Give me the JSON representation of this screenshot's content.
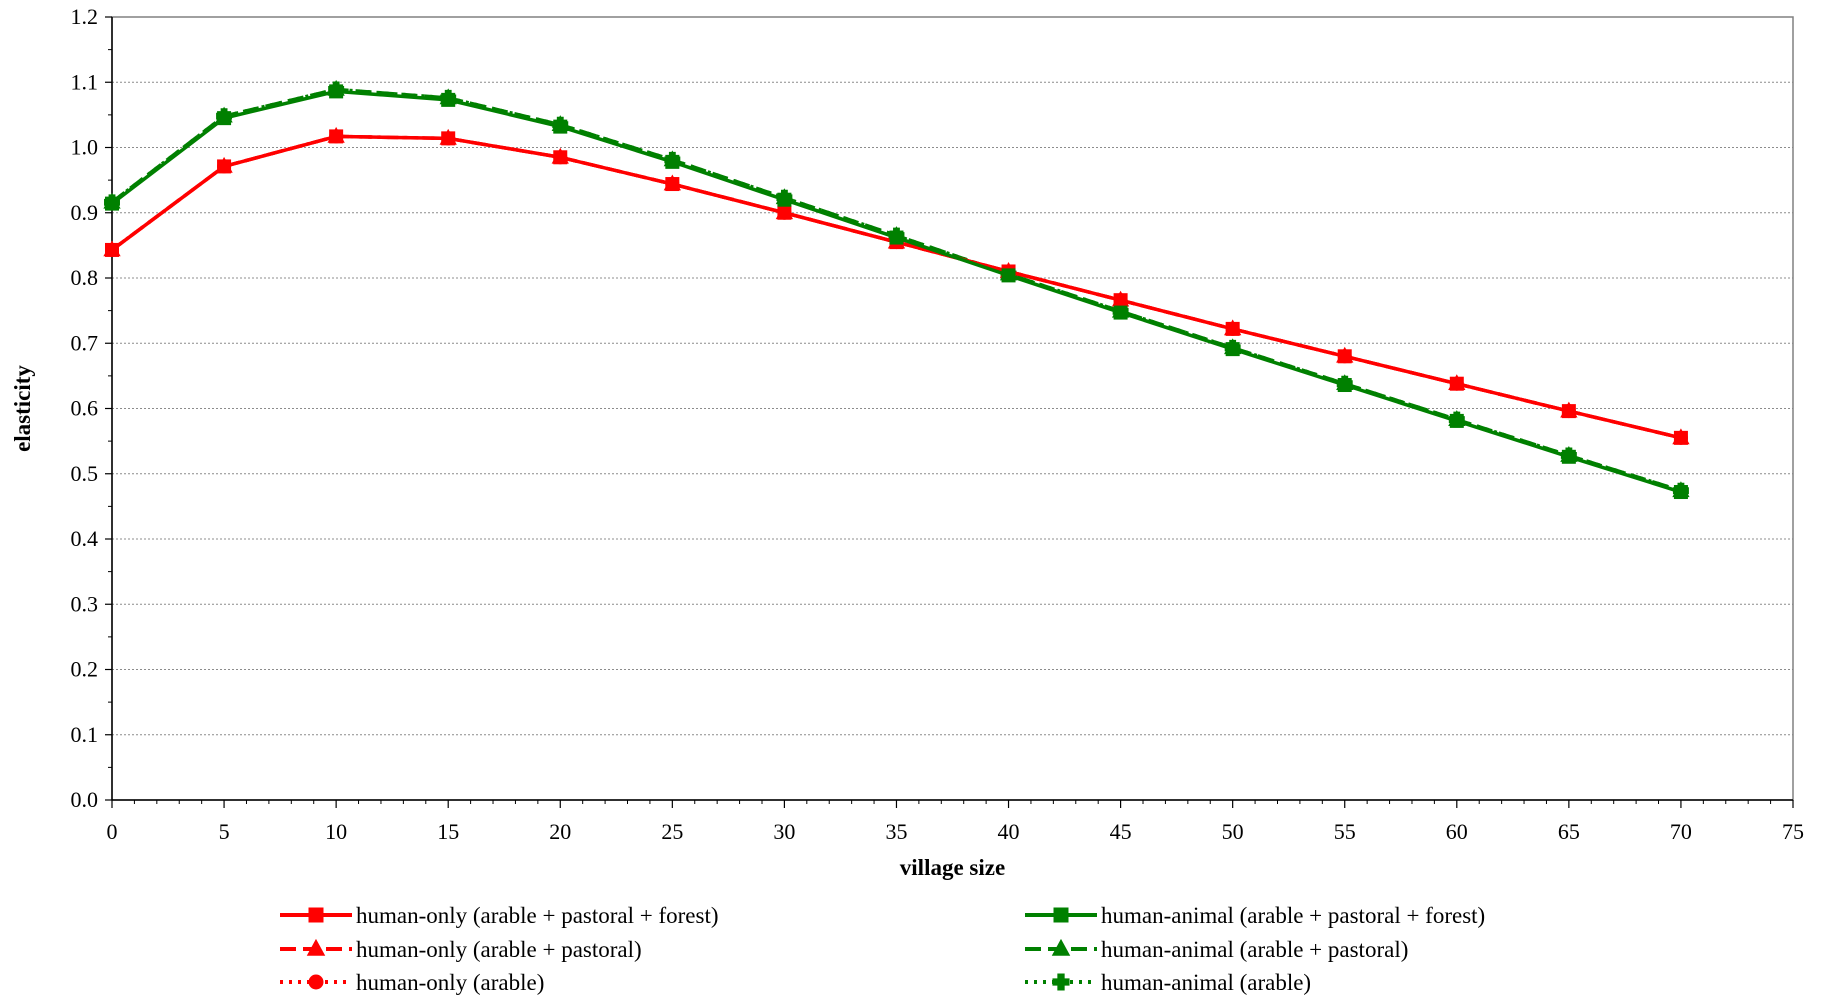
{
  "chart_data": {
    "type": "line",
    "xlabel": "village size",
    "ylabel": "elasticity",
    "xlim": [
      0,
      75
    ],
    "ylim": [
      0,
      1.2
    ],
    "x_ticks": [
      "0",
      "5",
      "10",
      "15",
      "20",
      "25",
      "30",
      "35",
      "40",
      "45",
      "50",
      "55",
      "60",
      "65",
      "70",
      "75"
    ],
    "y_ticks": [
      "0.0",
      "0.1",
      "0.2",
      "0.3",
      "0.4",
      "0.5",
      "0.6",
      "0.7",
      "0.8",
      "0.9",
      "1.0",
      "1.1",
      "1.2"
    ],
    "grid": "horizontal",
    "legend_position": "bottom",
    "x": [
      0,
      5,
      10,
      15,
      20,
      25,
      30,
      35,
      40,
      45,
      50,
      55,
      60,
      65,
      70
    ],
    "series": [
      {
        "name": "human-only (arable + pastoral + forest)",
        "color": "#ff0000",
        "line_style": "solid",
        "marker": "square",
        "values": [
          0.843,
          0.971,
          1.017,
          1.014,
          0.985,
          0.944,
          0.9,
          0.855,
          0.81,
          0.766,
          0.722,
          0.68,
          0.638,
          0.596,
          0.555
        ]
      },
      {
        "name": "human-only (arable + pastoral)",
        "color": "#ff0000",
        "line_style": "dashed",
        "marker": "triangle",
        "values": [
          0.843,
          0.971,
          1.017,
          1.014,
          0.985,
          0.944,
          0.9,
          0.855,
          0.81,
          0.766,
          0.722,
          0.68,
          0.638,
          0.596,
          0.555
        ]
      },
      {
        "name": "human-only (arable)",
        "color": "#ff0000",
        "line_style": "dotted",
        "marker": "circle",
        "values": [
          0.843,
          0.971,
          1.017,
          1.014,
          0.985,
          0.944,
          0.9,
          0.855,
          0.81,
          0.766,
          0.722,
          0.68,
          0.638,
          0.596,
          0.555
        ]
      },
      {
        "name": "human-animal (arable + pastoral + forest)",
        "color": "#008000",
        "line_style": "solid",
        "marker": "square",
        "values": [
          0.914,
          1.045,
          1.086,
          1.073,
          1.032,
          0.978,
          0.92,
          0.862,
          0.804,
          0.747,
          0.691,
          0.636,
          0.581,
          0.526,
          0.472
        ]
      },
      {
        "name": "human-animal (arable + pastoral)",
        "color": "#008000",
        "line_style": "dashed",
        "marker": "triangle",
        "values": [
          0.916,
          1.048,
          1.089,
          1.076,
          1.035,
          0.981,
          0.923,
          0.865,
          0.806,
          0.749,
          0.693,
          0.638,
          0.583,
          0.528,
          0.474
        ]
      },
      {
        "name": "human-animal (arable)",
        "color": "#008000",
        "line_style": "dotted",
        "marker": "cross",
        "values": [
          0.916,
          1.048,
          1.089,
          1.076,
          1.035,
          0.981,
          0.923,
          0.865,
          0.806,
          0.749,
          0.693,
          0.638,
          0.583,
          0.528,
          0.474
        ]
      }
    ]
  }
}
